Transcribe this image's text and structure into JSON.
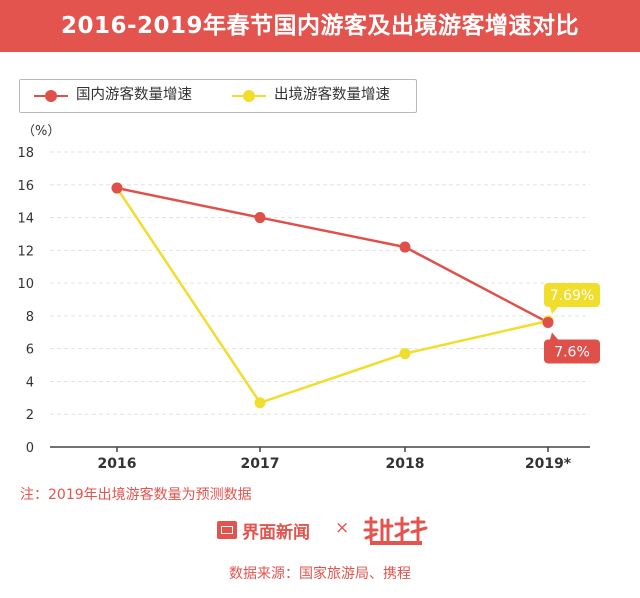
{
  "title": "2016-2019年春节国内游客及出境游客增速对比",
  "colors": {
    "accent": "#e4544f",
    "domestic": "#e0504a",
    "outbound": "#f1dd2c",
    "grid": "#e3e3e3"
  },
  "chart_data": {
    "type": "line",
    "categories": [
      "2016",
      "2017",
      "2018",
      "2019*"
    ],
    "series": [
      {
        "name": "国内游客数量增速",
        "values": [
          15.8,
          14.0,
          12.2,
          7.6
        ]
      },
      {
        "name": "出境游客数量增速",
        "values": [
          15.8,
          2.7,
          5.7,
          7.69
        ]
      }
    ],
    "annotations": [
      {
        "series": 1,
        "index": 3,
        "text": "7.69%"
      },
      {
        "series": 0,
        "index": 3,
        "text": "7.6%"
      }
    ],
    "ylabel": "（%）",
    "ylim": [
      0,
      18
    ],
    "yticks": [
      "0",
      "2",
      "4",
      "6",
      "8",
      "10",
      "12",
      "14",
      "16",
      "18"
    ],
    "grid": true,
    "legend_position": "top-left"
  },
  "note": "注：2019年出境游客数量为预测数据",
  "brand": {
    "name": "界面新闻",
    "separator": "×",
    "logo_icon": "jiemian-logo-icon",
    "partner_logo": "shujuxian-logo"
  },
  "source": "数据来源：国家旅游局、携程"
}
